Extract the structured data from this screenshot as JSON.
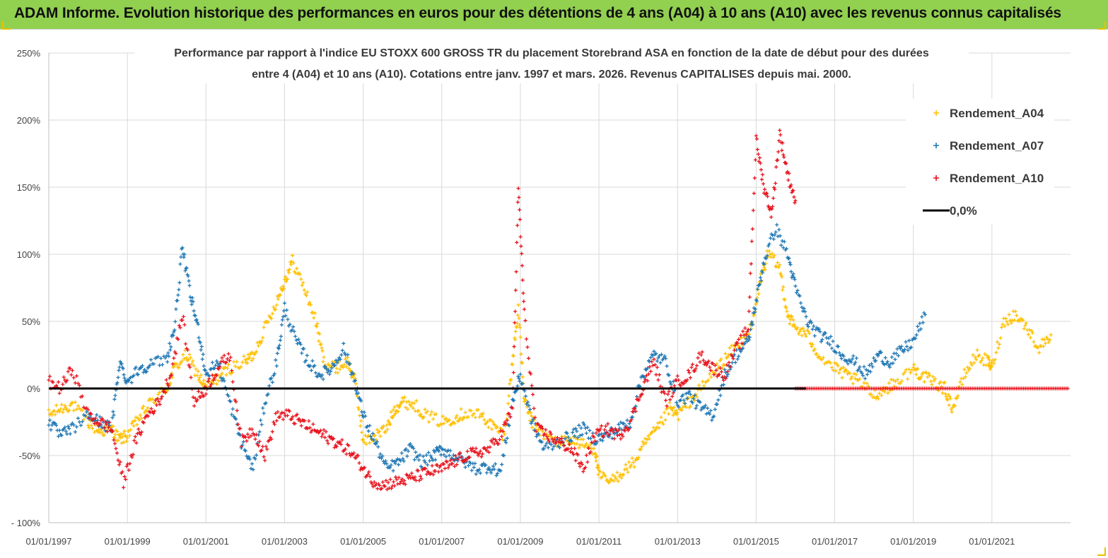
{
  "header": {
    "title": "ADAM Informe. Evolution historique des performances en euros pour des détentions de 4 ans (A04) à 10 ans (A10) avec les revenus connus capitalisés",
    "background_color": "#92d050"
  },
  "chart_data": {
    "type": "scatter",
    "title_lines": [
      "Performance par rapport à l'indice EU STOXX 600 GROSS TR  du placement Storebrand ASA en fonction de la date de début pour des durées",
      "entre 4 (A04) et 10 ans (A10). Cotations entre janv. 1997 et mars. 2026. Revenus CAPITALISES depuis mai. 2000."
    ],
    "xlabel": "",
    "ylabel": "",
    "ylim": [
      -100,
      250
    ],
    "yticks": [
      -100,
      -50,
      0,
      50,
      100,
      150,
      200,
      250
    ],
    "ytick_labels": [
      "- 100%",
      "-50%",
      "0%",
      "50%",
      "100%",
      "150%",
      "200%",
      "250%"
    ],
    "xlim": [
      1997.0,
      2023.0
    ],
    "xticks": [
      1997,
      1999,
      2001,
      2003,
      2005,
      2007,
      2009,
      2011,
      2013,
      2015,
      2017,
      2019,
      2021
    ],
    "xtick_labels": [
      "01/01/1997",
      "01/01/1999",
      "01/01/2001",
      "01/01/2003",
      "01/01/2005",
      "01/01/2007",
      "01/01/2009",
      "01/01/2011",
      "01/01/2013",
      "01/01/2015",
      "01/01/2017",
      "01/01/2019",
      "01/01/2021"
    ],
    "grid": true,
    "legend_position": "top-right",
    "reference_line": {
      "name": "0,0%",
      "y": 0,
      "color": "#000000"
    },
    "series": [
      {
        "name": "Rendement_A04",
        "color": "#ffc000",
        "x_end": 2022.5,
        "x": [
          1997.0,
          1997.3,
          1997.6,
          1998.0,
          1998.3,
          1998.6,
          1998.8,
          1999.0,
          1999.3,
          1999.6,
          2000.0,
          2000.2,
          2000.5,
          2000.8,
          2001.0,
          2001.3,
          2001.6,
          2002.0,
          2002.2,
          2002.5,
          2002.8,
          2003.0,
          2003.2,
          2003.5,
          2003.8,
          2004.0,
          2004.3,
          2004.6,
          2004.8,
          2005.0,
          2005.3,
          2005.6,
          2005.8,
          2006.0,
          2006.3,
          2006.6,
          2007.0,
          2007.3,
          2007.6,
          2008.0,
          2008.3,
          2008.6,
          2008.8,
          2008.95,
          2009.1,
          2009.3,
          2009.6,
          2010.0,
          2010.3,
          2010.6,
          2010.9,
          2011.0,
          2011.3,
          2011.6,
          2011.9,
          2012.2,
          2012.5,
          2012.8,
          2013.0,
          2013.3,
          2013.6,
          2014.0,
          2014.3,
          2014.6,
          2014.9,
          2015.1,
          2015.3,
          2015.6,
          2015.8,
          2016.0,
          2016.3,
          2016.6,
          2017.0,
          2017.3,
          2017.6,
          2018.0,
          2018.3,
          2018.6,
          2019.0,
          2019.2,
          2019.5,
          2019.8,
          2020.0,
          2020.3,
          2020.6,
          2020.9,
          2021.0,
          2021.3,
          2021.6,
          2021.9,
          2022.2,
          2022.5
        ],
        "values": [
          -20,
          -15,
          -12,
          -25,
          -32,
          -30,
          -38,
          -35,
          -22,
          -10,
          0,
          15,
          25,
          10,
          0,
          8,
          15,
          20,
          25,
          45,
          65,
          80,
          95,
          75,
          50,
          20,
          15,
          20,
          5,
          -40,
          -35,
          -30,
          -15,
          -10,
          -12,
          -20,
          -25,
          -22,
          -18,
          -20,
          -28,
          -35,
          20,
          60,
          -10,
          -25,
          -35,
          -40,
          -38,
          -42,
          -45,
          -65,
          -70,
          -62,
          -55,
          -40,
          -30,
          -15,
          -20,
          -10,
          0,
          15,
          25,
          35,
          45,
          80,
          100,
          90,
          55,
          45,
          40,
          25,
          15,
          10,
          5,
          -5,
          0,
          5,
          15,
          10,
          5,
          0,
          -15,
          10,
          25,
          20,
          15,
          50,
          55,
          45,
          30,
          40
        ]
      },
      {
        "name": "Rendement_A07",
        "color": "#1f77b4",
        "x_end": 2019.3,
        "x": [
          1997.0,
          1997.3,
          1997.6,
          1998.0,
          1998.3,
          1998.6,
          1998.8,
          1999.0,
          1999.3,
          1999.6,
          2000.0,
          2000.2,
          2000.4,
          2000.6,
          2000.8,
          2001.0,
          2001.3,
          2001.6,
          2001.9,
          2002.2,
          2002.5,
          2002.8,
          2003.0,
          2003.3,
          2003.6,
          2003.9,
          2004.2,
          2004.5,
          2004.8,
          2005.0,
          2005.3,
          2005.6,
          2005.9,
          2006.2,
          2006.5,
          2006.8,
          2007.0,
          2007.3,
          2007.6,
          2007.9,
          2008.2,
          2008.5,
          2008.8,
          2009.0,
          2009.3,
          2009.6,
          2010.0,
          2010.3,
          2010.6,
          2010.9,
          2011.2,
          2011.5,
          2011.8,
          2012.1,
          2012.4,
          2012.7,
          2013.0,
          2013.3,
          2013.6,
          2013.9,
          2014.2,
          2014.5,
          2014.8,
          2015.0,
          2015.2,
          2015.5,
          2015.8,
          2016.0,
          2016.3,
          2016.6,
          2016.9,
          2017.2,
          2017.5,
          2017.8,
          2018.1,
          2018.4,
          2018.7,
          2019.0,
          2019.3
        ],
        "values": [
          -25,
          -35,
          -30,
          -20,
          -25,
          -30,
          20,
          5,
          15,
          18,
          22,
          45,
          105,
          70,
          45,
          10,
          20,
          -10,
          -40,
          -60,
          -10,
          20,
          60,
          35,
          20,
          10,
          15,
          30,
          5,
          -20,
          -40,
          -60,
          -55,
          -45,
          -55,
          -50,
          -45,
          -50,
          -55,
          -60,
          -58,
          -62,
          -10,
          10,
          -25,
          -45,
          -40,
          -35,
          -30,
          -38,
          -35,
          -30,
          -25,
          10,
          25,
          20,
          -10,
          -5,
          -15,
          -20,
          10,
          25,
          35,
          65,
          95,
          120,
          100,
          75,
          50,
          40,
          35,
          25,
          20,
          10,
          25,
          20,
          28,
          35,
          55
        ]
      },
      {
        "name": "Rendement_A10",
        "color": "#e8121c",
        "x_end": 2016.0,
        "x": [
          1997.0,
          1997.3,
          1997.6,
          1998.0,
          1998.3,
          1998.6,
          1998.9,
          1999.2,
          1999.5,
          1999.8,
          2000.1,
          2000.4,
          2000.7,
          2001.0,
          2001.3,
          2001.6,
          2001.9,
          2002.2,
          2002.5,
          2002.8,
          2003.1,
          2003.4,
          2003.7,
          2004.0,
          2004.3,
          2004.6,
          2004.9,
          2005.2,
          2005.5,
          2005.8,
          2006.1,
          2006.4,
          2006.7,
          2007.0,
          2007.3,
          2007.6,
          2007.9,
          2008.2,
          2008.5,
          2008.8,
          2008.95,
          2009.1,
          2009.4,
          2009.7,
          2010.0,
          2010.3,
          2010.6,
          2010.9,
          2011.2,
          2011.5,
          2011.8,
          2012.1,
          2012.4,
          2012.7,
          2013.0,
          2013.3,
          2013.6,
          2013.9,
          2014.2,
          2014.5,
          2014.8,
          2015.0,
          2015.2,
          2015.4,
          2015.6,
          2015.8,
          2016.0
        ],
        "values": [
          5,
          0,
          15,
          -20,
          -25,
          -30,
          -70,
          -40,
          -20,
          -10,
          10,
          55,
          -10,
          0,
          15,
          25,
          -40,
          -30,
          -50,
          -20,
          -20,
          -25,
          -30,
          -35,
          -40,
          -45,
          -55,
          -68,
          -72,
          -70,
          -68,
          -65,
          -62,
          -60,
          -55,
          -50,
          -48,
          -45,
          -35,
          -15,
          150,
          55,
          -30,
          -35,
          -40,
          -45,
          -60,
          -35,
          -30,
          -35,
          -25,
          0,
          20,
          -10,
          5,
          10,
          25,
          15,
          10,
          30,
          45,
          185,
          150,
          130,
          190,
          160,
          140
        ]
      }
    ]
  }
}
